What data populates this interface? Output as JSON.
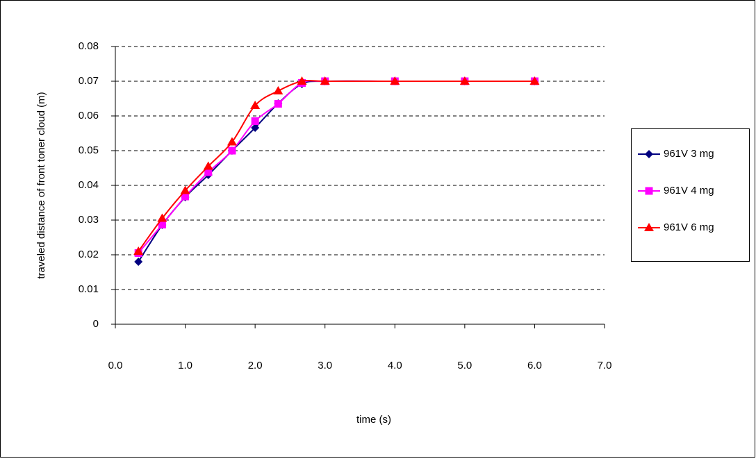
{
  "chart_data": {
    "type": "line",
    "x_label": "time (s)",
    "y_label": "traveled distance of front toner cloud (m)",
    "x": [
      0.33,
      0.67,
      1.0,
      1.33,
      1.67,
      2.0,
      2.33,
      2.67,
      3.0,
      4.0,
      5.0,
      6.0
    ],
    "series": [
      {
        "name": "961V 3 mg",
        "color": "#000080",
        "marker": "diamond",
        "values": [
          0.018,
          0.0286,
          0.0366,
          0.043,
          0.05,
          0.0566,
          0.0636,
          0.0692,
          0.07,
          0.07,
          0.07,
          0.07
        ]
      },
      {
        "name": "961V 4 mg",
        "color": "#ff00ff",
        "marker": "square",
        "values": [
          0.0205,
          0.0287,
          0.0368,
          0.0438,
          0.05,
          0.0585,
          0.0635,
          0.0695,
          0.07,
          0.07,
          0.07,
          0.07
        ]
      },
      {
        "name": "961V 6  mg",
        "color": "#ff0000",
        "marker": "triangle",
        "values": [
          0.021,
          0.0305,
          0.0385,
          0.0455,
          0.0525,
          0.063,
          0.0672,
          0.07,
          0.07,
          0.07,
          0.07,
          0.07
        ]
      }
    ],
    "xlim": [
      0,
      7
    ],
    "xticks": [
      {
        "value": 0,
        "label": "0.0"
      },
      {
        "value": 1,
        "label": "1.0"
      },
      {
        "value": 2,
        "label": "2.0"
      },
      {
        "value": 3,
        "label": "3.0"
      },
      {
        "value": 4,
        "label": "4.0"
      },
      {
        "value": 5,
        "label": "5.0"
      },
      {
        "value": 6,
        "label": "6.0"
      },
      {
        "value": 7,
        "label": "7.0"
      }
    ],
    "ylim": [
      0,
      0.08
    ],
    "yticks": [
      0,
      0.01,
      0.02,
      0.03,
      0.04,
      0.05,
      0.06,
      0.07,
      0.08
    ],
    "grid": true,
    "legend": "right"
  }
}
